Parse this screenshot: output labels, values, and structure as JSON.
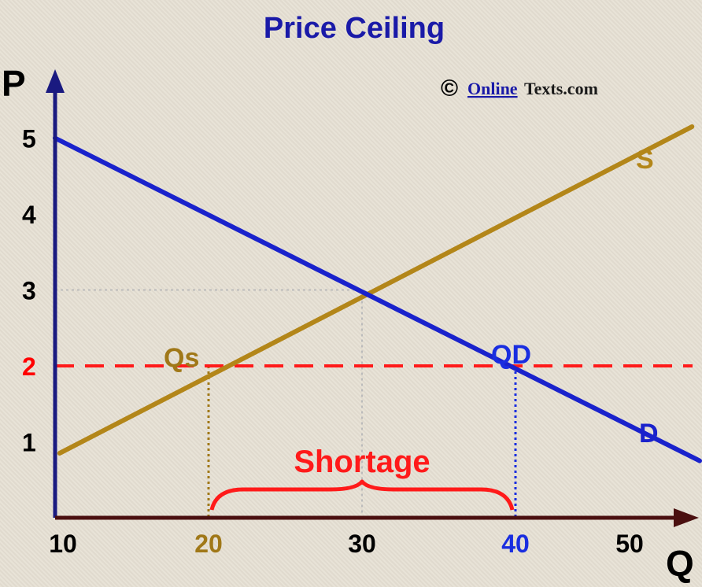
{
  "chart_data": {
    "type": "line",
    "title": "Price Ceiling",
    "xlabel": "Q",
    "ylabel": "P",
    "xlim": [
      10,
      52
    ],
    "ylim": [
      0,
      5.3
    ],
    "x_ticks": [
      {
        "value": 10,
        "label": "10",
        "color": "#000000"
      },
      {
        "value": 20,
        "label": "20",
        "color": "#a07818"
      },
      {
        "value": 30,
        "label": "30",
        "color": "#000000"
      },
      {
        "value": 40,
        "label": "40",
        "color": "#1a2ee0"
      },
      {
        "value": 50,
        "label": "50",
        "color": "#000000"
      }
    ],
    "y_ticks": [
      {
        "value": 1,
        "label": "1",
        "color": "#000000"
      },
      {
        "value": 2,
        "label": "2",
        "color": "#ff0000"
      },
      {
        "value": 3,
        "label": "3",
        "color": "#000000"
      },
      {
        "value": 4,
        "label": "4",
        "color": "#000000"
      },
      {
        "value": 5,
        "label": "5",
        "color": "#000000"
      }
    ],
    "series": [
      {
        "name": "S",
        "color": "#b38619",
        "points": [
          [
            10.3,
            0.85
          ],
          [
            51.5,
            5.15
          ]
        ]
      },
      {
        "name": "D",
        "color": "#1a22cc",
        "points": [
          [
            10,
            5.0
          ],
          [
            52,
            0.75
          ]
        ]
      }
    ],
    "price_ceiling": {
      "value": 2,
      "color": "#ff1a1a"
    },
    "equilibrium": {
      "q": 30,
      "p": 3
    },
    "quantity_supplied": {
      "label": "Qs",
      "q": 20,
      "p": 2,
      "color": "#a07818"
    },
    "quantity_demanded": {
      "label": "QD",
      "q": 40,
      "p": 2,
      "color": "#1a2ee0"
    },
    "shortage": {
      "label": "Shortage",
      "from": 20,
      "to": 40,
      "color": "#ff1a1a"
    },
    "grid": false
  },
  "credit": {
    "symbol": "©",
    "name_underlined": "Online",
    "name_rest": "Texts.com"
  },
  "colors": {
    "title": "#1a1aa8",
    "axis": "#4a0f0f",
    "y_axis": "#1a1a80",
    "reference": "#bbbbbb"
  }
}
